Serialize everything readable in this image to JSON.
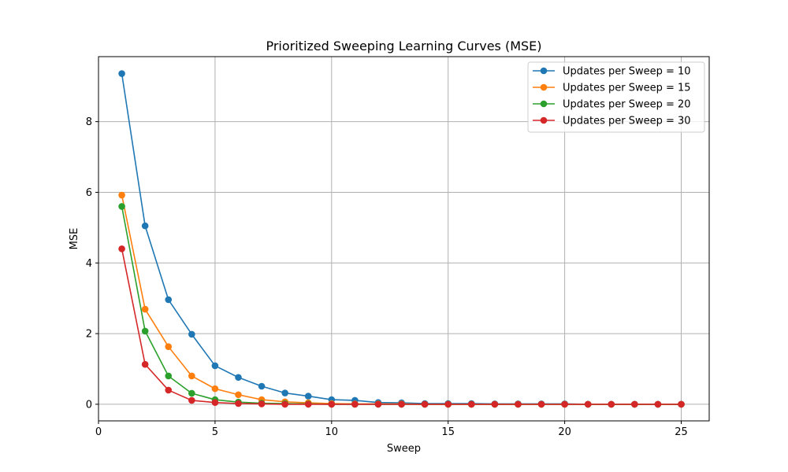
{
  "chart_data": {
    "type": "line",
    "title": "Prioritized Sweeping Learning Curves (MSE)",
    "xlabel": "Sweep",
    "ylabel": "MSE",
    "xlim": [
      0,
      26.2
    ],
    "ylim": [
      -0.47,
      9.84
    ],
    "xticks": [
      0,
      5,
      10,
      15,
      20,
      25
    ],
    "yticks": [
      0,
      2,
      4,
      6,
      8
    ],
    "grid": true,
    "legend_position": "top-right",
    "marker": "circle",
    "x": [
      1,
      2,
      3,
      4,
      5,
      6,
      7,
      8,
      9,
      10,
      11,
      12,
      13,
      14,
      15,
      16,
      17,
      18,
      19,
      20,
      21,
      22,
      23,
      24,
      25
    ],
    "series": [
      {
        "name": "Updates per Sweep = 10",
        "color": "#1f77b4",
        "values": [
          9.36,
          5.05,
          2.96,
          1.98,
          1.09,
          0.76,
          0.51,
          0.32,
          0.23,
          0.13,
          0.11,
          0.05,
          0.04,
          0.02,
          0.02,
          0.02,
          0.01,
          0.01,
          0.01,
          0.01,
          0.0,
          0.0,
          0.0,
          0.0,
          0.0
        ]
      },
      {
        "name": "Updates per Sweep = 15",
        "color": "#ff7f0e",
        "values": [
          5.92,
          2.69,
          1.63,
          0.8,
          0.44,
          0.27,
          0.13,
          0.07,
          0.04,
          0.02,
          0.01,
          0.01,
          0.01,
          0.0,
          0.0,
          0.0,
          0.0,
          0.0,
          0.0,
          0.0,
          0.0,
          0.0,
          0.0,
          0.0,
          0.0
        ]
      },
      {
        "name": "Updates per Sweep = 20",
        "color": "#2ca02c",
        "values": [
          5.6,
          2.07,
          0.8,
          0.31,
          0.13,
          0.06,
          0.03,
          0.02,
          0.01,
          0.0,
          0.0,
          0.0,
          0.0,
          0.0,
          0.0,
          0.0,
          0.0,
          0.0,
          0.0,
          0.0,
          0.0,
          0.0,
          0.0,
          0.0,
          0.0
        ]
      },
      {
        "name": "Updates per Sweep = 30",
        "color": "#d62728",
        "values": [
          4.4,
          1.13,
          0.4,
          0.11,
          0.05,
          0.02,
          0.01,
          0.0,
          0.0,
          0.0,
          0.0,
          0.0,
          0.0,
          0.0,
          0.0,
          0.0,
          0.0,
          0.0,
          0.0,
          0.0,
          0.0,
          0.0,
          0.0,
          0.0,
          0.0
        ]
      }
    ]
  }
}
